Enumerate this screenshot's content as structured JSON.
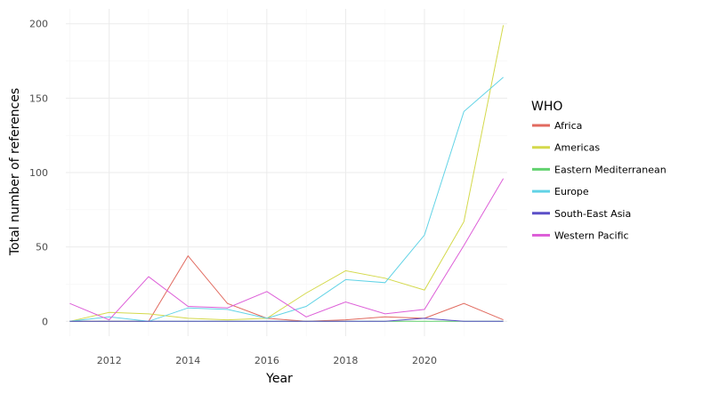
{
  "chart_data": {
    "type": "line",
    "xlabel": "Year",
    "ylabel": "Total number of references",
    "xlim": [
      2010.9,
      2022.1
    ],
    "ylim": [
      -10,
      210
    ],
    "x_ticks": [
      2012,
      2014,
      2016,
      2018,
      2020
    ],
    "y_ticks": [
      0,
      50,
      100,
      150,
      200
    ],
    "grid": true,
    "legend_position": "right",
    "legend_title": "WHO",
    "x": [
      2011,
      2012,
      2013,
      2014,
      2015,
      2016,
      2017,
      2018,
      2019,
      2020,
      2021,
      2022
    ],
    "series": [
      {
        "name": "Africa",
        "color": "#e16a5f",
        "values": [
          0,
          0,
          0,
          44,
          12,
          2,
          0,
          1,
          3,
          2,
          12,
          1
        ]
      },
      {
        "name": "Americas",
        "color": "#d4d94b",
        "values": [
          0,
          6,
          5,
          2,
          1,
          2,
          19,
          34,
          29,
          21,
          67,
          199
        ]
      },
      {
        "name": "Eastern Mediterranean",
        "color": "#62d26f",
        "values": [
          0,
          0,
          0,
          0,
          0,
          0,
          0,
          0,
          0,
          0,
          0,
          0
        ]
      },
      {
        "name": "Europe",
        "color": "#62d3e6",
        "values": [
          0,
          3,
          0,
          9,
          8,
          2,
          10,
          28,
          26,
          58,
          141,
          164
        ]
      },
      {
        "name": "South-East Asia",
        "color": "#5b4fc7",
        "values": [
          0,
          0,
          0,
          0,
          0,
          0,
          0,
          0,
          0,
          2,
          0,
          0
        ]
      },
      {
        "name": "Western Pacific",
        "color": "#dd5fd8",
        "values": [
          12,
          1,
          30,
          10,
          9,
          20,
          3,
          13,
          5,
          8,
          51,
          96
        ]
      }
    ]
  }
}
